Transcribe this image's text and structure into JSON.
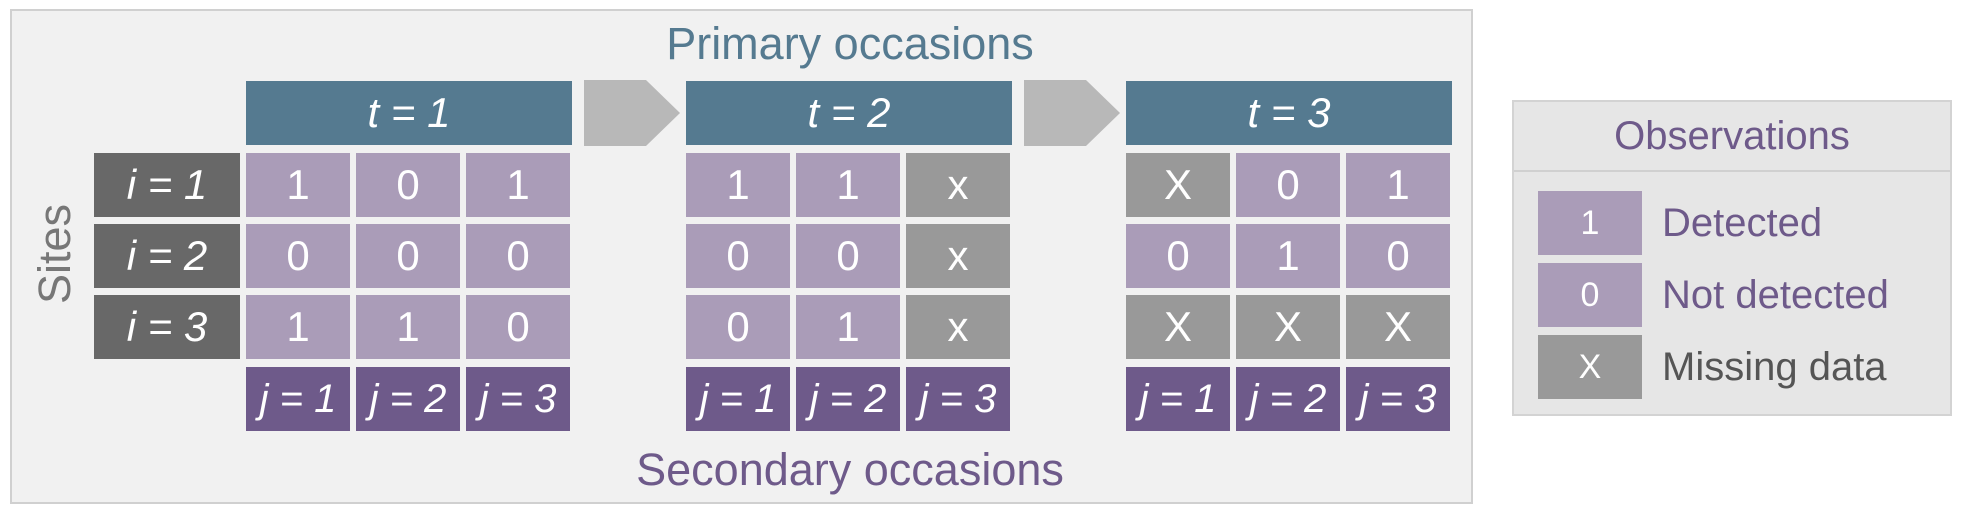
{
  "titles": {
    "primary": "Primary occasions",
    "secondary": "Secondary occasions",
    "sites": "Sites"
  },
  "colors": {
    "primary_header": "#557a90",
    "secondary_label": "#6e5a8a",
    "site_label": "#686868",
    "observed_cell": "#aa9cb8",
    "missing_cell": "#999999",
    "arrow": "#b8b8b8",
    "panel": "#f1f1f1"
  },
  "sites": [
    "i = 1",
    "i = 2",
    "i = 3"
  ],
  "primary_occasions": [
    {
      "label": "t = 1",
      "secondary_labels": [
        "j = 1",
        "j = 2",
        "j = 3"
      ],
      "rows": [
        [
          "1",
          "0",
          "1"
        ],
        [
          "0",
          "0",
          "0"
        ],
        [
          "1",
          "1",
          "0"
        ]
      ],
      "missing": [
        [
          false,
          false,
          false
        ],
        [
          false,
          false,
          false
        ],
        [
          false,
          false,
          false
        ]
      ]
    },
    {
      "label": "t = 2",
      "secondary_labels": [
        "j = 1",
        "j = 2",
        "j = 3"
      ],
      "rows": [
        [
          "1",
          "1",
          "x"
        ],
        [
          "0",
          "0",
          "x"
        ],
        [
          "0",
          "1",
          "x"
        ]
      ],
      "missing": [
        [
          false,
          false,
          true
        ],
        [
          false,
          false,
          true
        ],
        [
          false,
          false,
          true
        ]
      ]
    },
    {
      "label": "t = 3",
      "secondary_labels": [
        "j = 1",
        "j = 2",
        "j = 3"
      ],
      "rows": [
        [
          "X",
          "0",
          "1"
        ],
        [
          "0",
          "1",
          "0"
        ],
        [
          "X",
          "X",
          "X"
        ]
      ],
      "missing": [
        [
          true,
          false,
          false
        ],
        [
          false,
          false,
          false
        ],
        [
          true,
          true,
          true
        ]
      ]
    }
  ],
  "legend": {
    "title": "Observations",
    "items": [
      {
        "symbol": "1",
        "label": "Detected",
        "type": "observed"
      },
      {
        "symbol": "0",
        "label": "Not detected",
        "type": "observed"
      },
      {
        "symbol": "X",
        "label": "Missing data",
        "type": "missing"
      }
    ]
  }
}
